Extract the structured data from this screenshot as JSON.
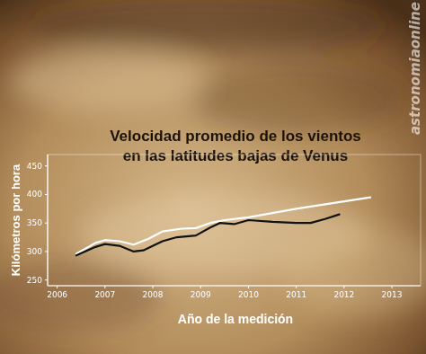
{
  "chart_data": {
    "type": "line",
    "title": "Velocidad promedio de los vientos\nen las latitudes bajas de Venus",
    "x_label": "Año de la medición",
    "y_label": "Kilómetros por hora",
    "annotations": [
      "astronomiaonline"
    ],
    "series": [
      {
        "color": "#ffffff",
        "x": [
          2006.4,
          2006.8,
          2007.0,
          2007.3,
          2007.6,
          2007.9,
          2008.2,
          2008.6,
          2008.9,
          2009.2,
          2009.5,
          2010.0,
          2011.0,
          2012.0,
          2012.55
        ],
        "values": [
          296,
          315,
          320,
          318,
          312,
          322,
          335,
          340,
          341,
          350,
          355,
          360,
          375,
          388,
          395
        ]
      },
      {
        "color": "#111111",
        "x": [
          2006.4,
          2006.8,
          2007.0,
          2007.3,
          2007.6,
          2007.8,
          2008.2,
          2008.5,
          2008.9,
          2009.2,
          2009.4,
          2009.7,
          2010.0,
          2010.5,
          2011.0,
          2011.3,
          2011.6,
          2011.9
        ],
        "values": [
          293,
          308,
          313,
          310,
          300,
          302,
          318,
          325,
          328,
          342,
          350,
          348,
          355,
          352,
          350,
          350,
          357,
          365
        ]
      }
    ],
    "xlim": [
      2005.8,
      2013.6
    ],
    "xticks": [
      2006,
      2007,
      2008,
      2009,
      2010,
      2011,
      2012,
      2013
    ],
    "ylim": [
      240,
      470
    ],
    "yticks": [
      250,
      300,
      350,
      400,
      450
    ],
    "grid": false,
    "tick_labels": true
  }
}
